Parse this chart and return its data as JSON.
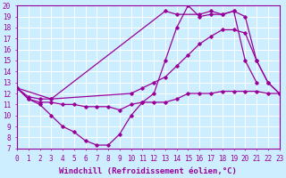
{
  "background_color": "#cceeff",
  "grid_color": "#ffffff",
  "line_color": "#990099",
  "xlabel": "Windchill (Refroidissement éolien,°C)",
  "xlabel_fontsize": 6.5,
  "tick_fontsize": 5.5,
  "xmin": 0,
  "xmax": 23,
  "ymin": 7,
  "ymax": 20,
  "series": [
    {
      "x": [
        0,
        1,
        2,
        3,
        4,
        5,
        6,
        7,
        8,
        9,
        10,
        11,
        12,
        13,
        14,
        15,
        16,
        17,
        18,
        19,
        20,
        21,
        22,
        23
      ],
      "y": [
        12.5,
        11.5,
        11.0,
        10.0,
        9.0,
        8.5,
        7.7,
        7.3,
        7.3,
        8.3,
        10.0,
        11.2,
        12.0,
        15.0,
        18.0,
        20.0,
        19.0,
        19.2,
        19.2,
        19.5,
        15.0,
        13.0,
        null,
        null
      ]
    },
    {
      "x": [
        0,
        1,
        2,
        3,
        4,
        5,
        6,
        7,
        8,
        9,
        10,
        11,
        12,
        13,
        14,
        15,
        16,
        17,
        18,
        19,
        20,
        21,
        22,
        23
      ],
      "y": [
        12.5,
        11.5,
        11.2,
        11.2,
        11.0,
        11.0,
        10.8,
        10.8,
        10.8,
        10.5,
        11.0,
        11.2,
        11.2,
        11.2,
        11.5,
        12.0,
        12.0,
        12.0,
        12.2,
        12.2,
        12.2,
        12.2,
        12.0,
        12.0
      ]
    },
    {
      "x": [
        0,
        1,
        2,
        3,
        10,
        11,
        12,
        13,
        14,
        15,
        16,
        17,
        18,
        19,
        20,
        21,
        22,
        23
      ],
      "y": [
        12.5,
        11.7,
        11.5,
        11.5,
        12.0,
        12.5,
        13.0,
        13.5,
        14.5,
        15.5,
        16.5,
        17.2,
        17.8,
        17.8,
        17.5,
        15.0,
        13.0,
        12.0
      ]
    },
    {
      "comment": "Diagonal from ~3,11.5 to 14,20 then to 19,19 then 20,19",
      "x": [
        0,
        3,
        13,
        14,
        16,
        17,
        18,
        19,
        20,
        21,
        22,
        23
      ],
      "y": [
        12.5,
        11.5,
        19.5,
        19.2,
        19.2,
        19.5,
        19.2,
        19.5,
        19.0,
        15.0,
        13.0,
        12.0
      ]
    }
  ]
}
